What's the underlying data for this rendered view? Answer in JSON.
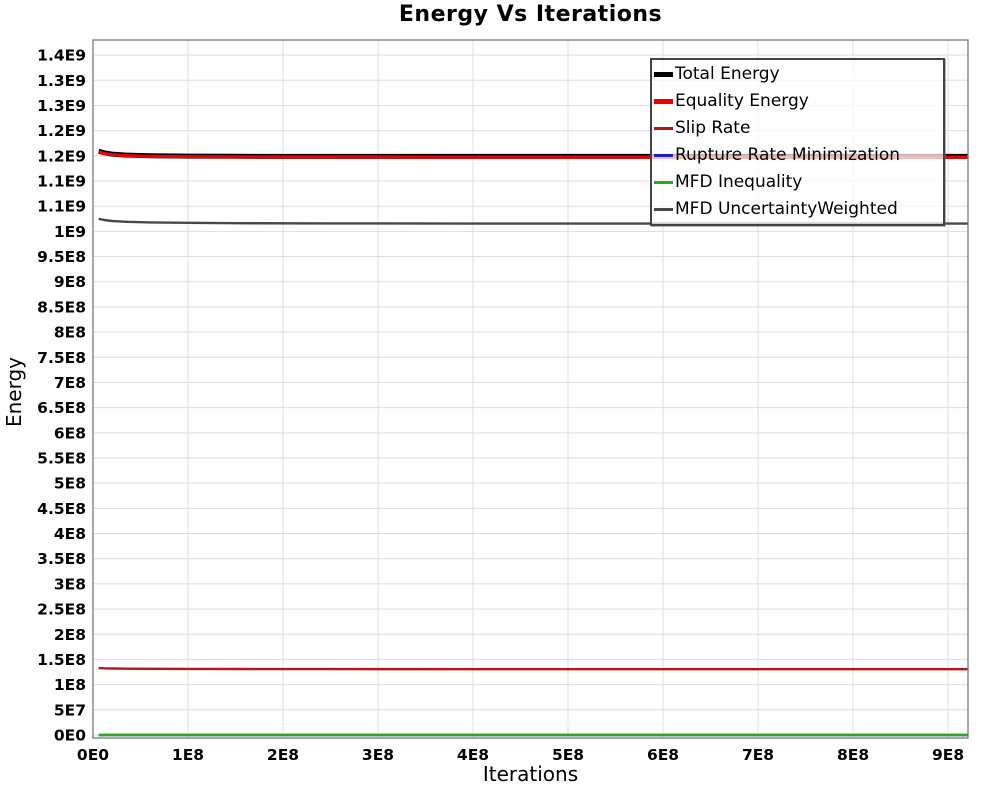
{
  "chart_data": {
    "type": "line",
    "title": "Energy Vs Iterations",
    "xlabel": "Iterations",
    "ylabel": "Energy",
    "background_color": "#FFFFFF",
    "grid": true,
    "grid_color": "#DEDEDE",
    "plot_border_color": "#7A7A7A",
    "legend_position": "top-right-inside",
    "x_axis": {
      "range": [
        0,
        921000000
      ],
      "tick_values": [
        0,
        100000000.0,
        200000000.0,
        300000000.0,
        400000000.0,
        500000000.0,
        600000000.0,
        700000000.0,
        800000000.0,
        900000000.0
      ],
      "tick_labels": [
        "0E0",
        "1E8",
        "2E8",
        "3E8",
        "4E8",
        "5E8",
        "6E8",
        "7E8",
        "8E8",
        "9E8"
      ]
    },
    "y_axis": {
      "range": [
        -6000000,
        1380000000
      ],
      "tick_values": [
        0,
        50000000.0,
        100000000.0,
        150000000.0,
        200000000.0,
        250000000.0,
        300000000.0,
        350000000.0,
        400000000.0,
        450000000.0,
        500000000.0,
        550000000.0,
        600000000.0,
        650000000.0,
        700000000.0,
        750000000.0,
        800000000.0,
        850000000.0,
        900000000.0,
        950000000.0,
        1000000000.0,
        1050000000.0,
        1100000000.0,
        1150000000.0,
        1200000000.0,
        1250000000.0,
        1300000000.0,
        1350000000.0
      ],
      "tick_labels": [
        "0E0",
        "5E7",
        "1E8",
        "1.5E8",
        "2E8",
        "2.5E8",
        "3E8",
        "3.5E8",
        "4E8",
        "4.5E8",
        "5E8",
        "5.5E8",
        "6E8",
        "6.5E8",
        "7E8",
        "7.5E8",
        "8E8",
        "8.5E8",
        "9E8",
        "9.5E8",
        "1E9",
        "1.1E9",
        "1.1E9",
        "1.2E9",
        "1.2E9",
        "1.3E9",
        "1.3E9",
        "1.4E9"
      ]
    },
    "shared_x": [
      6000000.0,
      12000000.0,
      20000000.0,
      35000000.0,
      60000000.0,
      100000000.0,
      150000000.0,
      250000000.0,
      400000000.0,
      600000000.0,
      800000000.0,
      921000000.0
    ],
    "series": [
      {
        "name": "Total Energy",
        "color": "#000000",
        "width": 5,
        "z": 4,
        "y": [
          1159000000.0,
          1156000000.0,
          1153500000.0,
          1151500000.0,
          1150200000.0,
          1149500000.0,
          1149100000.0,
          1148900000.0,
          1148800000.0,
          1148800000.0,
          1148800000.0,
          1148800000.0
        ]
      },
      {
        "name": "Equality Energy",
        "color": "#EE0000",
        "width": 3.2,
        "z": 5,
        "y": [
          1157700000.0,
          1154700000.0,
          1152200000.0,
          1150200000.0,
          1148900000.0,
          1148200000.0,
          1147800000.0,
          1147600000.0,
          1147500000.0,
          1147500000.0,
          1147500000.0,
          1147500000.0
        ]
      },
      {
        "name": "Slip Rate",
        "color": "#B51717",
        "width": 2.4,
        "z": 3,
        "y": [
          133000000.0,
          132500000.0,
          132000000.0,
          131700000.0,
          131400000.0,
          131200000.0,
          131000000.0,
          130800000.0,
          130700000.0,
          130600000.0,
          130600000.0,
          130600000.0
        ]
      },
      {
        "name": "Rupture Rate Minimization",
        "color": "#2020C0",
        "width": 2.4,
        "z": 0,
        "y": [
          0,
          0,
          0,
          0,
          0,
          0,
          0,
          0,
          0,
          0,
          0,
          0
        ]
      },
      {
        "name": "MFD Inequality",
        "color": "#28AA28",
        "width": 2.4,
        "z": 1,
        "y": [
          0,
          0,
          0,
          0,
          0,
          0,
          0,
          0,
          0,
          0,
          0,
          0
        ]
      },
      {
        "name": "MFD UncertaintyWeighted",
        "color": "#484848",
        "width": 2.4,
        "z": 2,
        "y": [
          1025000000.0,
          1022500000.0,
          1020500000.0,
          1019000000.0,
          1017800000.0,
          1017000000.0,
          1016300000.0,
          1015800000.0,
          1015500000.0,
          1015500000.0,
          1015500000.0,
          1015500000.0
        ]
      }
    ]
  }
}
